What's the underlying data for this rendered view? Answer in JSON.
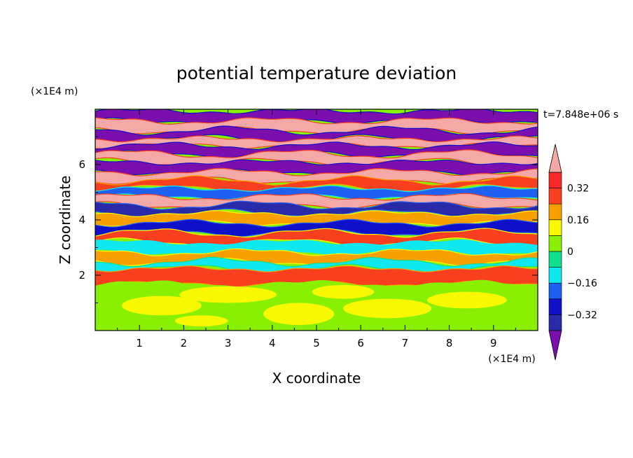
{
  "chart_data": {
    "type": "heatmap",
    "title": "potential temperature deviation",
    "xlabel": "X coordinate",
    "ylabel": "Z coordinate",
    "x_unit": "(×1E4 m)",
    "y_unit": "(×1E4 m)",
    "time_label": "t=7.848e+06 s",
    "xlim": [
      0,
      10
    ],
    "ylim": [
      0,
      8
    ],
    "x_ticks": [
      1,
      2,
      3,
      4,
      5,
      6,
      7,
      8,
      9
    ],
    "x_tick_labels": [
      "1",
      "2",
      "3",
      "4",
      "5",
      "6",
      "7",
      "8",
      "9"
    ],
    "y_ticks": [
      2,
      4,
      6
    ],
    "y_tick_labels": [
      "2",
      "4",
      "6"
    ],
    "colorbar": {
      "levels": [
        -0.4,
        -0.32,
        -0.24,
        -0.16,
        -0.08,
        0,
        0.08,
        0.16,
        0.24,
        0.32,
        0.4
      ],
      "labels": [
        "0.32",
        "0.16",
        "0",
        "−0.16",
        "−0.32"
      ],
      "label_values": [
        0.32,
        0.16,
        0,
        -0.16,
        -0.32
      ],
      "colors": [
        "#7b0fae",
        "#2a2aa8",
        "#1010c8",
        "#2060f0",
        "#10e8f0",
        "#10e090",
        "#88f000",
        "#f8f800",
        "#f8a000",
        "#f84020",
        "#f82828",
        "#f4a8a8"
      ]
    },
    "layers": [
      {
        "z": 7.75,
        "value": -0.5
      },
      {
        "z": 7.4,
        "value": 0.5
      },
      {
        "z": 7.05,
        "value": -0.5
      },
      {
        "z": 6.75,
        "value": 0.5
      },
      {
        "z": 6.5,
        "value": -0.5
      },
      {
        "z": 6.2,
        "value": 0.5
      },
      {
        "z": 5.9,
        "value": -0.45
      },
      {
        "z": 5.55,
        "value": 0.45
      },
      {
        "z": 5.25,
        "value": 0.3
      },
      {
        "z": 4.95,
        "value": -0.2
      },
      {
        "z": 4.65,
        "value": 0.4
      },
      {
        "z": 4.35,
        "value": -0.35
      },
      {
        "z": 4.05,
        "value": 0.2
      },
      {
        "z": 3.7,
        "value": -0.3
      },
      {
        "z": 3.35,
        "value": 0.25
      },
      {
        "z": 3.0,
        "value": -0.15
      },
      {
        "z": 2.65,
        "value": 0.2
      },
      {
        "z": 2.3,
        "value": -0.1
      },
      {
        "z": 2.05,
        "value": 0.3
      },
      {
        "z": 1.5,
        "value": 0.04
      },
      {
        "z": 0.8,
        "value": 0.02
      },
      {
        "z": 0.2,
        "value": 0.04
      }
    ]
  }
}
